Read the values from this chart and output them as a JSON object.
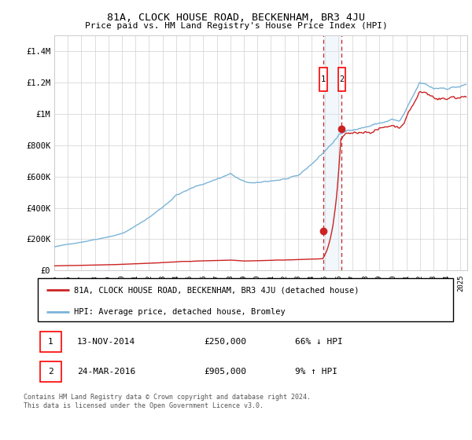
{
  "title": "81A, CLOCK HOUSE ROAD, BECKENHAM, BR3 4JU",
  "subtitle": "Price paid vs. HM Land Registry's House Price Index (HPI)",
  "hpi_label": "HPI: Average price, detached house, Bromley",
  "price_label": "81A, CLOCK HOUSE ROAD, BECKENHAM, BR3 4JU (detached house)",
  "hpi_color": "#7ab4d8",
  "price_color": "#cc2222",
  "vline_color": "#cc2222",
  "vshade_color": "#d8eaf6",
  "transaction1_date": 2014.87,
  "transaction2_date": 2016.23,
  "transaction1_price": 250000,
  "transaction2_price": 905000,
  "transaction1_label": "13-NOV-2014",
  "transaction2_label": "24-MAR-2016",
  "transaction1_pct": "66% ↓ HPI",
  "transaction2_pct": "9% ↑ HPI",
  "ylim": [
    0,
    1500000
  ],
  "yticks": [
    0,
    200000,
    400000,
    600000,
    800000,
    1000000,
    1200000,
    1400000
  ],
  "ytick_labels": [
    "£0",
    "£200K",
    "£400K",
    "£600K",
    "£800K",
    "£1M",
    "£1.2M",
    "£1.4M"
  ],
  "xlim_start": 1995,
  "xlim_end": 2025.5,
  "copyright_text": "Contains HM Land Registry data © Crown copyright and database right 2024.\nThis data is licensed under the Open Government Licence v3.0."
}
